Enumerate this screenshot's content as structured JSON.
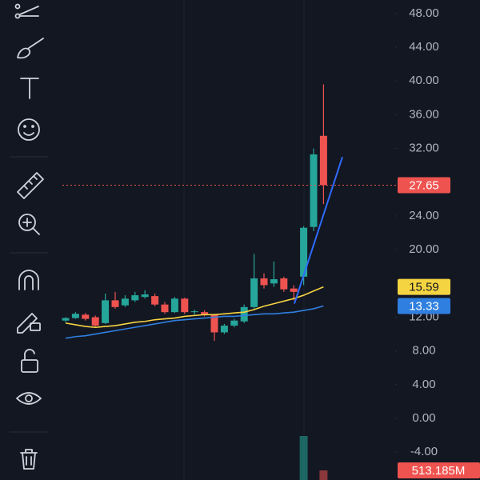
{
  "chart_data": {
    "type": "candlestick",
    "ylim": [
      -7.3,
      49.6
    ],
    "yticks": [
      {
        "value": -4,
        "label": "-4.00"
      },
      {
        "value": 0,
        "label": "0.00"
      },
      {
        "value": 4,
        "label": "4.00"
      },
      {
        "value": 8,
        "label": "8.00"
      },
      {
        "value": 12,
        "label": "12.00"
      },
      {
        "value": 20,
        "label": "20.00"
      },
      {
        "value": 24,
        "label": "24.00"
      },
      {
        "value": 32,
        "label": "32.00"
      },
      {
        "value": 36,
        "label": "36.00"
      },
      {
        "value": 40,
        "label": "40.00"
      },
      {
        "value": 44,
        "label": "44.00"
      },
      {
        "value": 48,
        "label": "48.00"
      }
    ],
    "up_color": "#26a69a",
    "down_color": "#ef5350",
    "open": [
      11.6,
      11.9,
      12.3,
      12.0,
      11.3,
      14.0,
      13.4,
      14.0,
      14.4,
      14.5,
      13.5,
      12.6,
      14.2,
      12.6,
      12.6,
      12.3,
      10.2,
      11.0,
      11.5,
      13.2,
      16.6,
      16.0,
      16.6,
      15.4,
      16.8,
      22.7,
      33.5
    ],
    "high": [
      12.0,
      12.6,
      12.5,
      12.2,
      14.8,
      15.0,
      14.6,
      15.0,
      15.2,
      14.8,
      13.8,
      14.4,
      14.3,
      12.9,
      12.8,
      12.4,
      11.2,
      11.8,
      13.5,
      19.5,
      17.2,
      18.6,
      16.8,
      15.8,
      22.8,
      32.0,
      39.6
    ],
    "low": [
      11.4,
      11.8,
      11.6,
      10.9,
      11.2,
      13.0,
      13.2,
      13.8,
      14.2,
      13.3,
      12.4,
      12.5,
      12.4,
      12.3,
      12.1,
      9.2,
      10.0,
      10.8,
      11.3,
      13.0,
      15.4,
      15.6,
      15.0,
      14.0,
      15.8,
      22.2,
      25.4
    ],
    "close": [
      11.9,
      12.4,
      11.8,
      11.0,
      14.0,
      13.2,
      14.2,
      14.6,
      14.7,
      13.5,
      12.6,
      14.2,
      12.6,
      12.7,
      12.3,
      10.2,
      11.0,
      11.6,
      13.2,
      16.6,
      15.8,
      16.5,
      15.3,
      15.0,
      22.6,
      31.3,
      27.65
    ],
    "series": [
      {
        "color": "#f5d442",
        "values": [
          11.3,
          11.1,
          10.9,
          10.8,
          10.9,
          11.0,
          11.2,
          11.4,
          11.5,
          11.7,
          11.8,
          11.9,
          12.1,
          12.2,
          12.3,
          12.3,
          12.4,
          12.5,
          12.6,
          12.9,
          13.3,
          13.6,
          13.9,
          14.2,
          14.6,
          15.1,
          15.59
        ]
      },
      {
        "color": "#2f7fe0",
        "values": [
          9.5,
          9.7,
          9.8,
          10.0,
          10.2,
          10.4,
          10.6,
          10.8,
          11.0,
          11.2,
          11.4,
          11.6,
          11.7,
          11.8,
          11.9,
          12.0,
          12.1,
          12.1,
          12.2,
          12.3,
          12.4,
          12.4,
          12.5,
          12.6,
          12.8,
          13.0,
          13.33
        ]
      }
    ],
    "volume": [
      null,
      null,
      null,
      null,
      null,
      null,
      null,
      null,
      null,
      null,
      null,
      null,
      null,
      null,
      null,
      null,
      null,
      null,
      null,
      null,
      null,
      null,
      null,
      null,
      2350000000,
      null,
      513185000
    ],
    "value_labels": {
      "volume": {
        "26": "513.185M"
      }
    },
    "trendline": {
      "color": "#2f6bff",
      "start": 13.6,
      "end": 31.0
    }
  }
}
